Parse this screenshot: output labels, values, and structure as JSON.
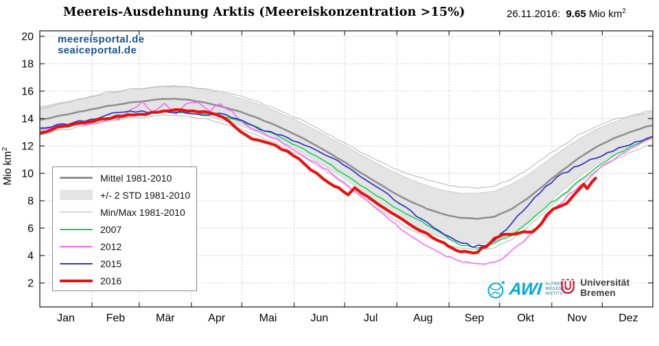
{
  "header": {
    "date_label": "26.11.2016:",
    "value": "9.65",
    "unit": "Mio km",
    "unit_exp": "2"
  },
  "watermark": {
    "line1": "meereisportal.de",
    "line2": "seaiceportal.de",
    "color": "#17518f"
  },
  "logos": {
    "awi": {
      "letters": "AWI",
      "lines": [
        "ALFRED",
        "WEGENER",
        "INSTITUT"
      ],
      "color": "#00a9e0"
    },
    "bremen": {
      "label": "Universität Bremen",
      "color": "#d4172b"
    }
  },
  "chart_data": {
    "type": "line",
    "title": "Meereis-Ausdehnung Arktis (Meereiskonzentration >15%)",
    "ylabel": "Mio km",
    "ylabel_exp": "2",
    "ylim": [
      0.25,
      20.4
    ],
    "yticks": [
      2,
      4,
      6,
      8,
      10,
      12,
      14,
      16,
      18,
      20
    ],
    "month_labels": [
      "Jan",
      "Feb",
      "Mär",
      "Apr",
      "Mai",
      "Jun",
      "Jul",
      "Aug",
      "Sep",
      "Okt",
      "Nov",
      "Dez"
    ],
    "month_cumdays": [
      0,
      31,
      59,
      90,
      120,
      151,
      181,
      212,
      243,
      273,
      304,
      334,
      365
    ],
    "grid": {
      "style": "dotted",
      "color": "#bcbcbc"
    },
    "band": {
      "name": "+/- 2 STD 1981-2010",
      "fill": "#e4e4e4",
      "edge": "#cdcdcd",
      "days": [
        1,
        11,
        21,
        31,
        41,
        51,
        61,
        71,
        81,
        91,
        101,
        111,
        121,
        131,
        141,
        151,
        161,
        171,
        181,
        191,
        201,
        211,
        221,
        231,
        241,
        251,
        261,
        271,
        281,
        291,
        301,
        311,
        321,
        331,
        341,
        351,
        361,
        365
      ],
      "upper": [
        14.85,
        15.1,
        15.32,
        15.55,
        15.8,
        16.0,
        16.17,
        16.35,
        16.4,
        16.3,
        16.05,
        15.8,
        15.45,
        15.05,
        14.55,
        14.0,
        13.4,
        12.75,
        12.1,
        11.4,
        10.75,
        10.1,
        9.55,
        9.1,
        8.75,
        8.55,
        8.55,
        8.7,
        9.2,
        9.9,
        10.8,
        11.7,
        12.5,
        13.2,
        13.7,
        14.1,
        14.4,
        14.5
      ],
      "lower": [
        12.95,
        13.2,
        13.48,
        13.75,
        14.0,
        14.2,
        14.33,
        14.45,
        14.5,
        14.4,
        14.15,
        13.8,
        13.45,
        12.95,
        12.45,
        11.9,
        11.2,
        10.45,
        9.7,
        8.8,
        7.95,
        7.1,
        6.35,
        5.7,
        5.25,
        4.95,
        4.85,
        5.0,
        5.6,
        6.5,
        7.6,
        8.7,
        9.7,
        10.6,
        11.3,
        11.9,
        12.4,
        12.5
      ]
    },
    "series": [
      {
        "name": "Max 1981-2010",
        "color": "#b9b9b9",
        "width": 1.1,
        "amp": 0.05,
        "days": [
          1,
          11,
          21,
          31,
          41,
          51,
          61,
          71,
          81,
          91,
          101,
          111,
          121,
          131,
          141,
          151,
          161,
          171,
          181,
          191,
          201,
          211,
          221,
          231,
          241,
          251,
          261,
          271,
          281,
          291,
          301,
          311,
          321,
          331,
          341,
          351,
          361,
          365
        ],
        "values": [
          14.7,
          15.0,
          15.3,
          15.6,
          15.9,
          16.1,
          16.2,
          16.3,
          16.35,
          16.3,
          16.1,
          15.9,
          15.6,
          15.2,
          14.7,
          14.2,
          13.6,
          12.9,
          12.3,
          11.6,
          11.0,
          10.4,
          9.9,
          9.5,
          9.2,
          9.0,
          8.95,
          9.1,
          9.6,
          10.3,
          11.2,
          12.0,
          12.8,
          13.4,
          13.9,
          14.2,
          14.5,
          14.55
        ]
      },
      {
        "name": "Min 1981-2010",
        "color": "#b9b9b9",
        "width": 1.1,
        "amp": 0.06,
        "days": [
          1,
          11,
          21,
          31,
          41,
          51,
          61,
          71,
          81,
          91,
          101,
          111,
          121,
          131,
          141,
          151,
          161,
          171,
          181,
          191,
          201,
          211,
          221,
          231,
          241,
          251,
          261,
          271,
          281,
          291,
          301,
          311,
          321,
          331,
          341,
          351,
          361,
          365
        ],
        "values": [
          12.9,
          13.1,
          13.3,
          13.55,
          13.8,
          14.0,
          14.1,
          14.2,
          14.25,
          14.15,
          13.9,
          13.55,
          13.2,
          12.7,
          12.2,
          11.6,
          10.9,
          10.1,
          9.3,
          8.4,
          7.5,
          6.7,
          5.9,
          5.3,
          4.85,
          4.55,
          4.45,
          4.6,
          5.2,
          6.1,
          7.2,
          8.3,
          9.3,
          10.2,
          10.9,
          11.5,
          12.0,
          12.1
        ]
      },
      {
        "name": "Mittel 1981-2010",
        "color": "#8f8f8f",
        "width": 2.6,
        "amp": 0.02,
        "days": [
          1,
          11,
          21,
          31,
          41,
          51,
          61,
          71,
          81,
          91,
          101,
          111,
          121,
          131,
          141,
          151,
          161,
          171,
          181,
          191,
          201,
          211,
          221,
          231,
          241,
          251,
          261,
          271,
          281,
          291,
          301,
          311,
          321,
          331,
          341,
          351,
          361,
          365
        ],
        "values": [
          13.9,
          14.15,
          14.4,
          14.65,
          14.9,
          15.1,
          15.25,
          15.4,
          15.45,
          15.35,
          15.1,
          14.8,
          14.45,
          14.0,
          13.5,
          12.95,
          12.3,
          11.6,
          10.9,
          10.1,
          9.35,
          8.6,
          7.95,
          7.4,
          7.0,
          6.75,
          6.7,
          6.85,
          7.4,
          8.2,
          9.2,
          10.2,
          11.1,
          11.9,
          12.5,
          13.0,
          13.4,
          13.5
        ]
      },
      {
        "name": "2007",
        "color": "#12d34a",
        "width": 1.6,
        "amp": 0.07,
        "days": [
          1,
          11,
          21,
          31,
          41,
          51,
          61,
          71,
          81,
          91,
          101,
          111,
          121,
          131,
          141,
          151,
          161,
          171,
          181,
          191,
          201,
          211,
          221,
          231,
          241,
          251,
          261,
          271,
          281,
          291,
          301,
          311,
          321,
          331,
          341,
          351,
          361,
          365
        ],
        "values": [
          13.05,
          13.3,
          13.5,
          13.7,
          13.95,
          14.15,
          14.3,
          14.45,
          14.5,
          14.4,
          14.3,
          14.1,
          13.75,
          13.3,
          12.8,
          12.2,
          11.5,
          10.8,
          10.0,
          9.2,
          8.4,
          7.6,
          6.9,
          6.2,
          5.5,
          4.75,
          4.6,
          4.95,
          5.5,
          6.4,
          7.5,
          8.4,
          9.4,
          10.4,
          11.2,
          11.9,
          12.5,
          12.7
        ]
      },
      {
        "name": "2012",
        "color": "#f867f8",
        "width": 1.6,
        "amp": 0.08,
        "days": [
          1,
          11,
          21,
          31,
          41,
          48,
          55,
          62,
          68,
          75,
          82,
          88,
          95,
          102,
          108,
          115,
          122,
          132,
          142,
          152,
          162,
          172,
          182,
          192,
          202,
          212,
          222,
          232,
          242,
          252,
          260,
          268,
          275,
          285,
          295,
          305,
          315,
          325,
          335,
          345,
          355,
          365
        ],
        "values": [
          13.2,
          13.45,
          13.55,
          13.6,
          13.8,
          14.0,
          14.6,
          15.2,
          14.5,
          15.1,
          14.4,
          15.1,
          15.15,
          14.6,
          15.05,
          14.55,
          13.6,
          13.0,
          12.5,
          11.75,
          11.0,
          10.2,
          9.3,
          8.3,
          7.3,
          6.3,
          5.4,
          4.6,
          3.95,
          3.5,
          3.4,
          3.45,
          3.7,
          4.7,
          5.8,
          7.2,
          8.4,
          9.4,
          10.5,
          11.3,
          12.0,
          12.65
        ]
      },
      {
        "name": "2015",
        "color": "#3132cf",
        "width": 1.8,
        "amp": 0.08,
        "days": [
          1,
          11,
          21,
          31,
          41,
          48,
          58,
          68,
          78,
          88,
          98,
          108,
          118,
          128,
          138,
          148,
          158,
          168,
          178,
          188,
          198,
          208,
          218,
          228,
          238,
          248,
          258,
          268,
          278,
          288,
          298,
          308,
          318,
          328,
          338,
          348,
          358,
          365
        ],
        "values": [
          13.3,
          13.5,
          13.7,
          13.9,
          14.2,
          14.5,
          14.5,
          14.45,
          14.5,
          14.4,
          14.3,
          14.35,
          14.0,
          13.4,
          13.0,
          12.6,
          12.1,
          11.5,
          10.85,
          10.1,
          9.3,
          8.4,
          7.5,
          6.6,
          5.8,
          5.1,
          4.65,
          4.8,
          5.9,
          7.3,
          8.6,
          9.7,
          10.4,
          11.0,
          11.5,
          12.0,
          12.4,
          12.7
        ]
      },
      {
        "name": "2016",
        "color": "#e8120d",
        "width": 4.2,
        "amp": 0.07,
        "days": [
          1,
          8,
          15,
          22,
          29,
          36,
          43,
          50,
          57,
          64,
          71,
          78,
          85,
          92,
          99,
          106,
          113,
          120,
          127,
          134,
          141,
          148,
          155,
          162,
          169,
          176,
          181,
          184,
          188,
          192,
          199,
          206,
          213,
          220,
          227,
          234,
          241,
          246,
          251,
          256,
          261,
          266,
          271,
          276,
          281,
          286,
          291,
          296,
          299,
          302,
          306,
          310,
          314,
          318,
          321,
          324,
          326,
          329,
          331
        ],
        "values": [
          12.9,
          13.2,
          13.45,
          13.6,
          13.75,
          13.9,
          14.05,
          14.2,
          14.3,
          14.35,
          14.45,
          14.6,
          14.65,
          14.55,
          14.5,
          14.3,
          13.9,
          13.1,
          12.55,
          12.3,
          12.0,
          11.6,
          11.0,
          10.3,
          9.6,
          9.1,
          8.7,
          8.5,
          8.95,
          8.55,
          8.0,
          7.45,
          6.85,
          6.3,
          5.8,
          5.35,
          4.9,
          4.5,
          4.3,
          4.2,
          4.3,
          4.7,
          5.3,
          5.55,
          5.6,
          5.65,
          5.7,
          5.9,
          6.3,
          6.9,
          7.45,
          7.6,
          7.8,
          8.35,
          8.75,
          9.2,
          8.85,
          9.35,
          9.65
        ]
      }
    ],
    "legend": {
      "position": "left-middle",
      "items": [
        {
          "label": "Mittel 1981-2010",
          "type": "line",
          "color": "#8f8f8f",
          "weight": 3
        },
        {
          "label": "+/- 2 STD 1981-2010",
          "type": "patch",
          "color": "#e4e4e4"
        },
        {
          "label": "Min/Max 1981-2010",
          "type": "line",
          "color": "#b9b9b9",
          "weight": 1.5
        },
        {
          "label": "2007",
          "type": "line",
          "color": "#12d34a",
          "weight": 2
        },
        {
          "label": "2012",
          "type": "line",
          "color": "#f867f8",
          "weight": 2
        },
        {
          "label": "2015",
          "type": "line",
          "color": "#3132cf",
          "weight": 2
        },
        {
          "label": "2016",
          "type": "line",
          "color": "#e8120d",
          "weight": 4
        }
      ]
    }
  }
}
